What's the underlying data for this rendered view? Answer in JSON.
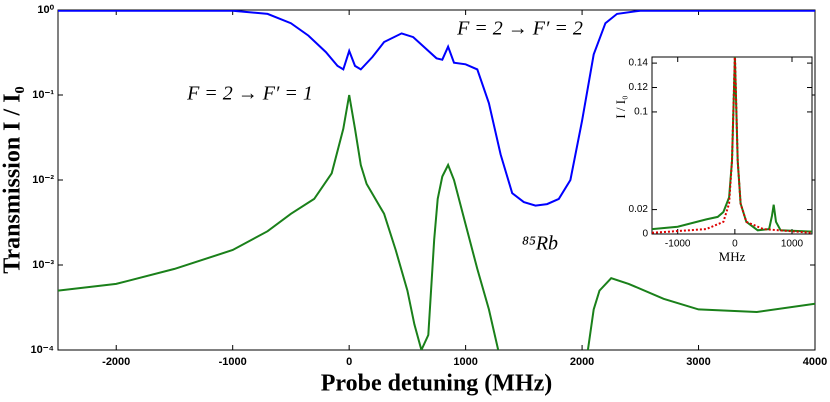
{
  "chart_data": [
    {
      "type": "line",
      "xlabel": "Probe detuning (MHz)",
      "ylabel": "Transmission I / I₀",
      "annotations": [
        "F = 2 → F′ = 1",
        "F = 2 → F′ = 2",
        "⁸⁵Rb"
      ],
      "xlim": [
        -2500,
        4000
      ],
      "xticks": [
        -2000,
        -1000,
        0,
        1000,
        2000,
        3000,
        4000
      ],
      "ylim": [
        0.0001,
        1
      ],
      "ylog": true,
      "yticks": [
        {
          "value": 0.0001,
          "label": "10⁻⁴"
        },
        {
          "value": 0.001,
          "label": "10⁻³"
        },
        {
          "value": 0.01,
          "label": "10⁻²"
        },
        {
          "value": 0.1,
          "label": "10⁻¹"
        },
        {
          "value": 1,
          "label": "10⁰"
        }
      ],
      "series": [
        {
          "color": "#0000ff",
          "x": [
            -2500,
            -1000,
            -700,
            -500,
            -350,
            -200,
            -100,
            -50,
            0,
            50,
            100,
            200,
            300,
            450,
            550,
            650,
            750,
            800,
            850,
            900,
            1000,
            1100,
            1200,
            1300,
            1400,
            1500,
            1600,
            1700,
            1800,
            1900,
            2000,
            2100,
            2200,
            2300,
            2500,
            4000
          ],
          "values": [
            0.98,
            0.98,
            0.9,
            0.7,
            0.5,
            0.32,
            0.22,
            0.2,
            0.33,
            0.22,
            0.2,
            0.28,
            0.42,
            0.53,
            0.48,
            0.36,
            0.27,
            0.26,
            0.37,
            0.24,
            0.23,
            0.2,
            0.08,
            0.02,
            0.007,
            0.0055,
            0.005,
            0.0052,
            0.006,
            0.01,
            0.05,
            0.3,
            0.7,
            0.9,
            0.98,
            0.98
          ]
        },
        {
          "color": "#1a801a",
          "x": [
            -2500,
            -2000,
            -1500,
            -1000,
            -700,
            -500,
            -300,
            -150,
            -50,
            0,
            50,
            100,
            150,
            300,
            400,
            500,
            560,
            620,
            680,
            730,
            760,
            800,
            850,
            900,
            1000,
            1100,
            1200,
            1280,
            1650,
            2050,
            2100,
            2150,
            2250,
            2400,
            2700,
            3000,
            3500,
            4000
          ],
          "values": [
            0.0005,
            0.0006,
            0.0009,
            0.0015,
            0.0025,
            0.004,
            0.006,
            0.012,
            0.04,
            0.1,
            0.04,
            0.015,
            0.009,
            0.004,
            0.0015,
            0.0005,
            0.0002,
            0.0001,
            0.00015,
            0.002,
            0.006,
            0.011,
            0.015,
            0.01,
            0.003,
            0.0009,
            0.0003,
            0.0001,
            null,
            0.0001,
            0.0003,
            0.0005,
            0.0007,
            0.0006,
            0.0004,
            0.0003,
            0.00028,
            0.00035
          ]
        }
      ]
    },
    {
      "type": "line",
      "xlabel": "MHz",
      "ylabel": "I / I₀",
      "xlim": [
        -1450,
        1350
      ],
      "xticks": [
        -1000,
        0,
        1000
      ],
      "ylim": [
        0,
        0.145
      ],
      "yticks": [
        0,
        0.02,
        0.1,
        0.12,
        0.14
      ],
      "series": [
        {
          "color": "#1a801a",
          "x": [
            -1450,
            -1000,
            -500,
            -300,
            -200,
            -100,
            -50,
            0,
            50,
            100,
            200,
            400,
            600,
            650,
            680,
            720,
            800,
            1350
          ],
          "values": [
            0.004,
            0.006,
            0.012,
            0.014,
            0.018,
            0.03,
            0.06,
            0.145,
            0.06,
            0.025,
            0.01,
            0.003,
            0.004,
            0.015,
            0.024,
            0.01,
            0.003,
            0.002
          ]
        },
        {
          "color": "#dd0000",
          "dash": "dotted",
          "x": [
            -1450,
            -500,
            -200,
            -100,
            -50,
            0,
            50,
            100,
            200,
            500,
            1350
          ],
          "values": [
            0.001,
            0.004,
            0.01,
            0.025,
            0.06,
            0.148,
            0.06,
            0.025,
            0.01,
            0.004,
            0.001
          ]
        }
      ]
    }
  ]
}
